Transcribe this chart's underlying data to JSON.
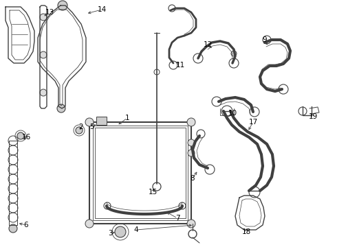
{
  "background_color": "#ffffff",
  "line_color": "#404040",
  "label_color": "#000000",
  "label_fontsize": 7.5,
  "line_width": 1.0,
  "fig_width": 4.9,
  "fig_height": 3.6,
  "dpi": 100
}
